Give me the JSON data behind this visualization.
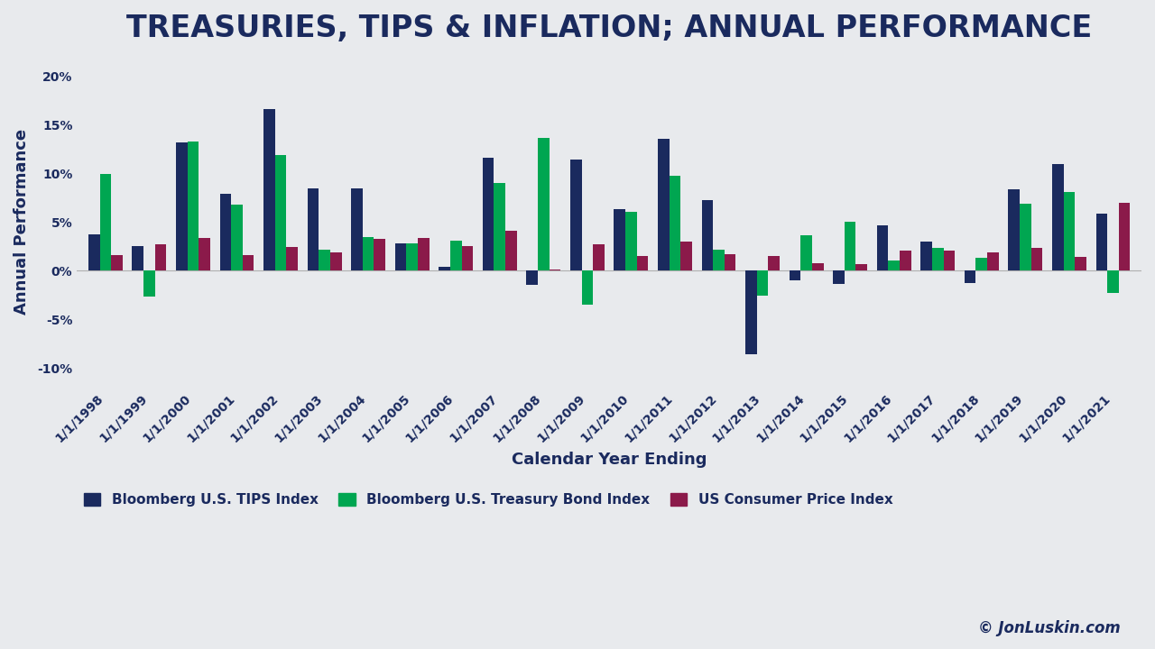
{
  "title": "TREASURIES, TIPS & INFLATION; ANNUAL PERFORMANCE",
  "xlabel": "Calendar Year Ending",
  "ylabel": "Annual Performance",
  "background_color": "#e8eaed",
  "title_color": "#1a2a5e",
  "axis_label_color": "#1a2a5e",
  "tick_color": "#1a2a5e",
  "watermark": "© JonLuskin.com",
  "years": [
    "1/1/1998",
    "1/1/1999",
    "1/1/2000",
    "1/1/2001",
    "1/1/2002",
    "1/1/2003",
    "1/1/2004",
    "1/1/2005",
    "1/1/2006",
    "1/1/2007",
    "1/1/2008",
    "1/1/2009",
    "1/1/2010",
    "1/1/2011",
    "1/1/2012",
    "1/1/2013",
    "1/1/2014",
    "1/1/2015",
    "1/1/2016",
    "1/1/2017",
    "1/1/2018",
    "1/1/2019",
    "1/1/2020",
    "1/1/2021"
  ],
  "tips": [
    3.7,
    2.5,
    13.2,
    7.9,
    16.6,
    8.5,
    8.5,
    2.8,
    0.4,
    11.6,
    -1.5,
    11.4,
    6.3,
    13.6,
    7.3,
    -8.6,
    -1.0,
    -1.4,
    4.7,
    3.0,
    -1.3,
    8.4,
    11.0,
    5.9
  ],
  "treasury": [
    10.0,
    -2.7,
    13.3,
    6.8,
    11.9,
    2.2,
    3.5,
    2.8,
    3.1,
    9.0,
    13.7,
    -3.5,
    6.1,
    9.8,
    2.2,
    -2.6,
    3.6,
    5.0,
    1.0,
    2.3,
    1.3,
    6.9,
    8.1,
    -2.3
  ],
  "cpi": [
    1.6,
    2.7,
    3.4,
    1.6,
    2.4,
    1.9,
    3.3,
    3.4,
    2.5,
    4.1,
    0.1,
    2.7,
    1.5,
    3.0,
    1.7,
    1.5,
    0.8,
    0.7,
    2.1,
    2.1,
    1.9,
    2.3,
    1.4,
    7.0
  ],
  "tips_color": "#1a2a5e",
  "treasury_color": "#00a651",
  "cpi_color": "#8b1a4a",
  "ylim": [
    -12,
    22
  ],
  "yticks": [
    -10,
    -5,
    0,
    5,
    10,
    15,
    20
  ],
  "legend_labels": [
    "Bloomberg U.S. TIPS Index",
    "Bloomberg U.S. Treasury Bond Index",
    "US Consumer Price Index"
  ],
  "title_fontsize": 24,
  "label_fontsize": 13,
  "tick_fontsize": 10
}
